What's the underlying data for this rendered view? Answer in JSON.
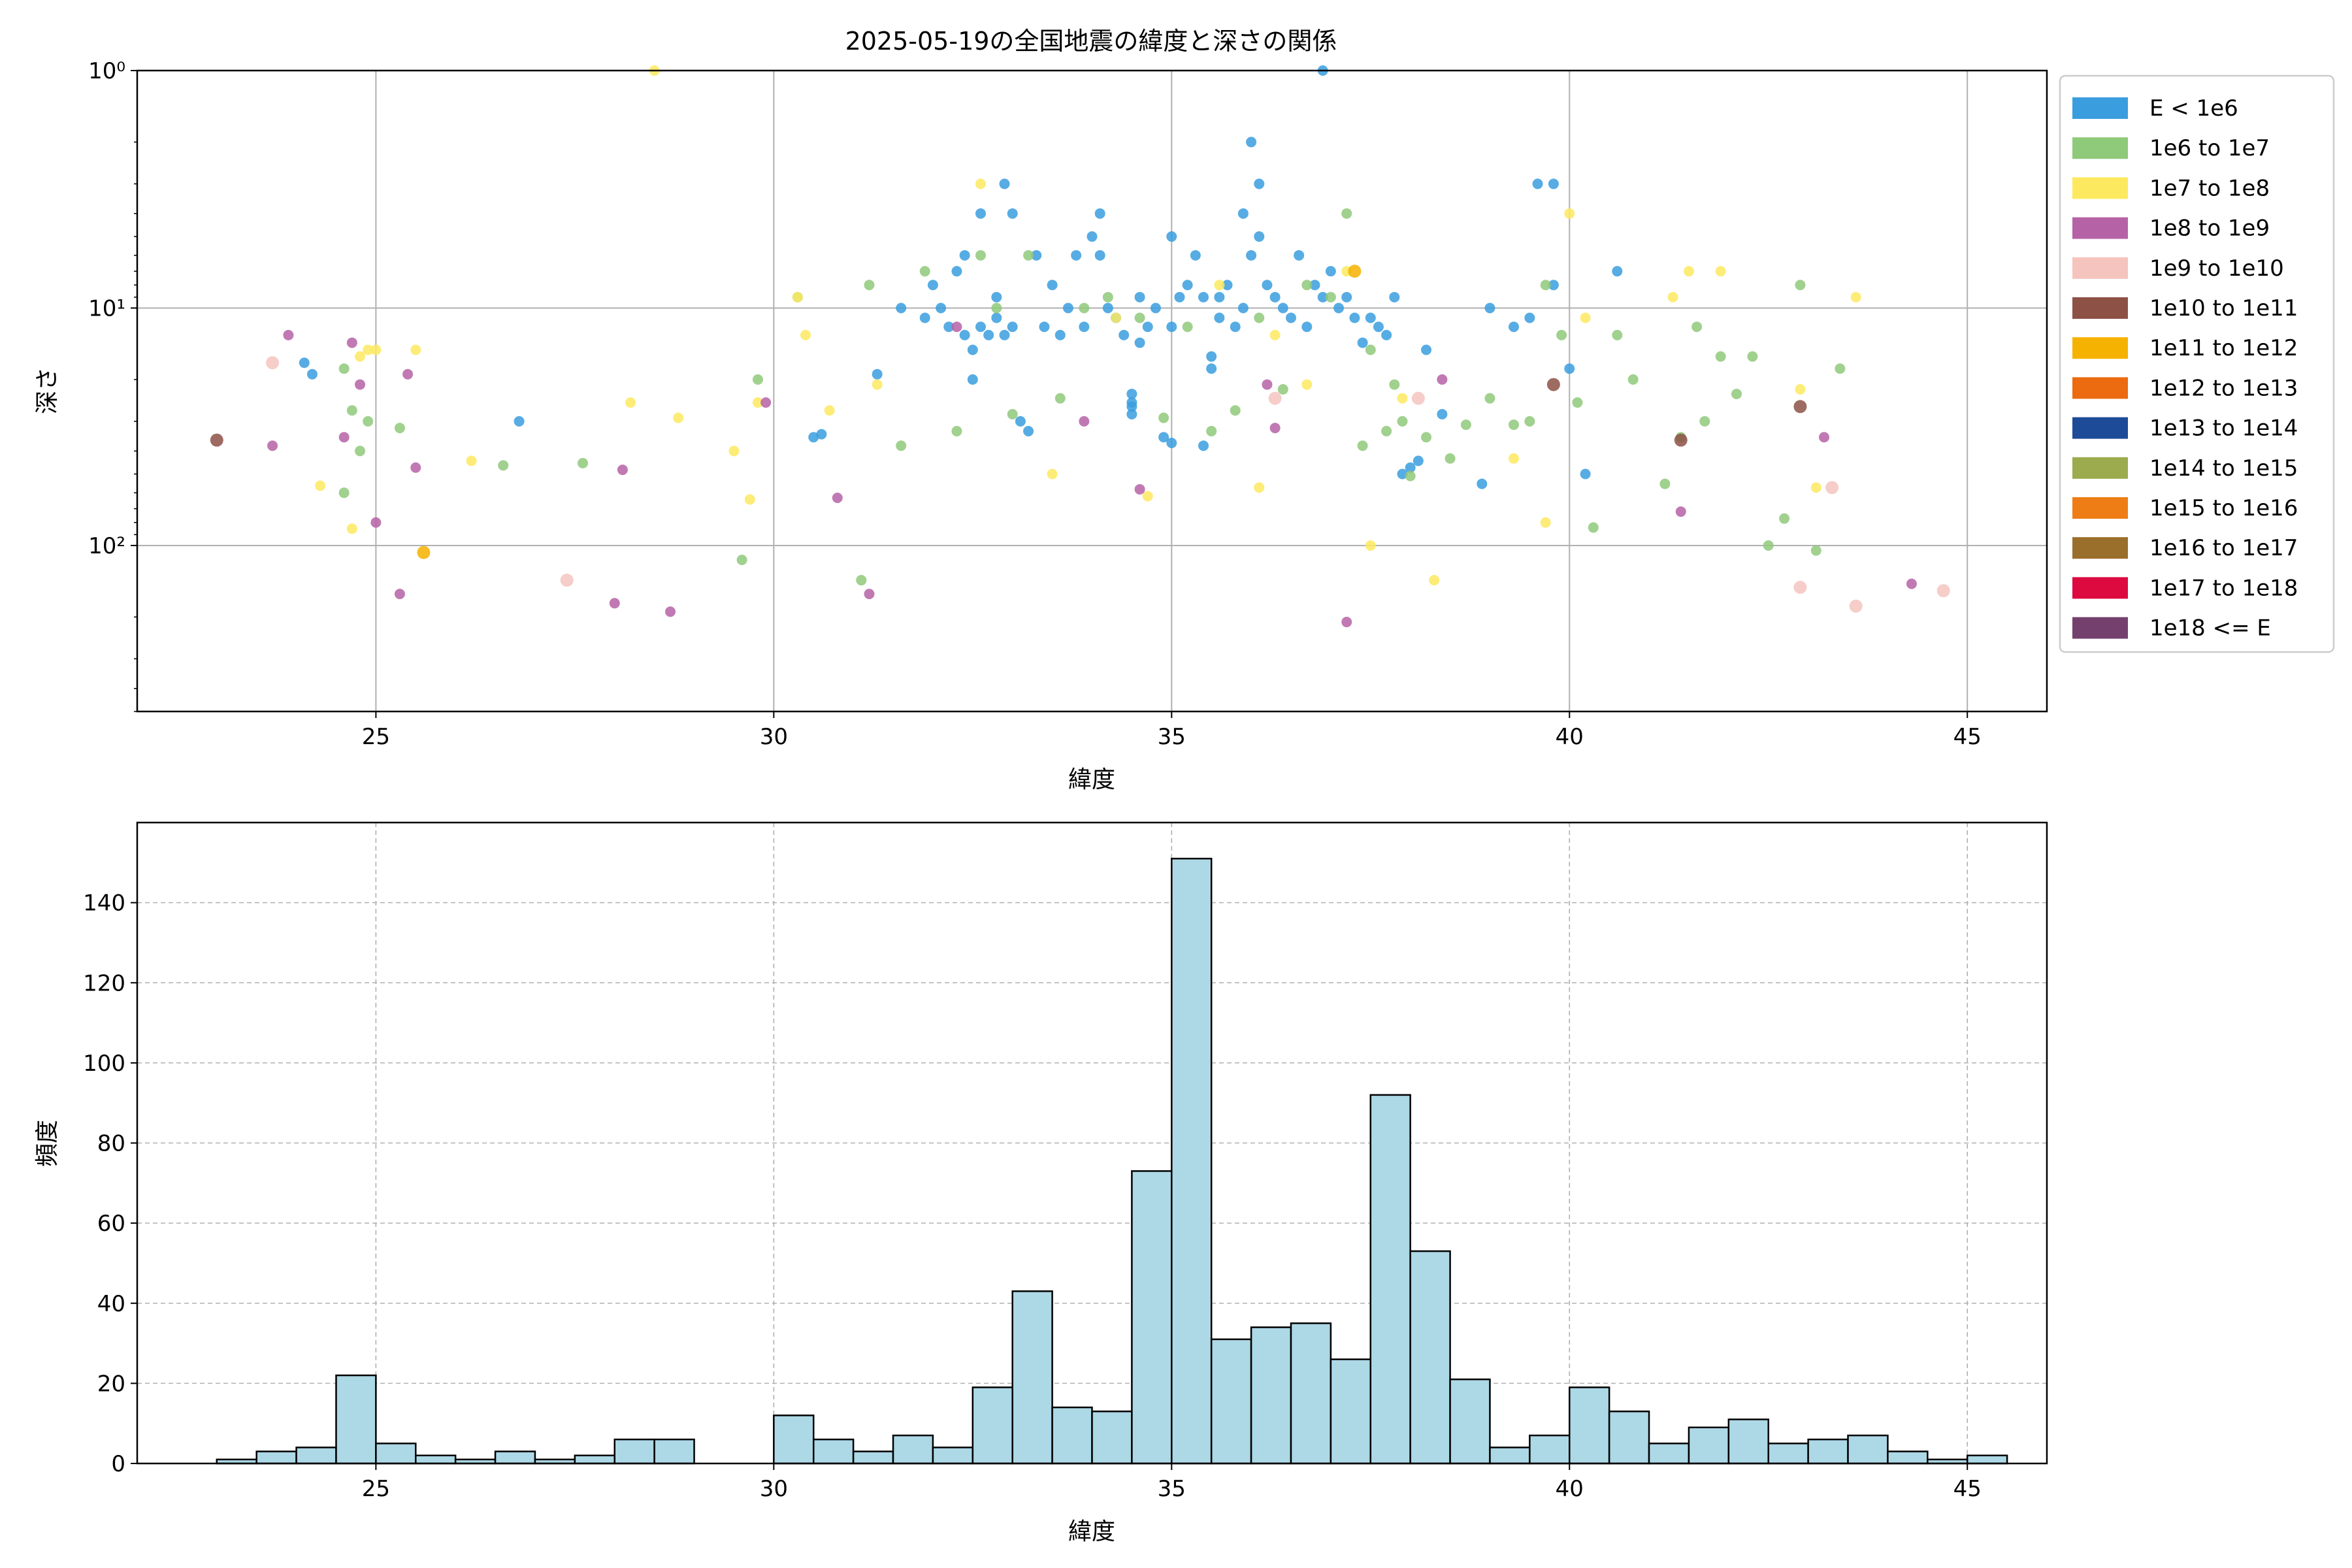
{
  "title": "2025-05-19の全国地震の緯度と深さの関係",
  "colors": {
    "grid": "#b0b0b0",
    "hist_fill": "#add8e6",
    "hist_edge": "#000000",
    "legend_border": "#cccccc"
  },
  "chart_data": [
    {
      "type": "scatter",
      "xlabel": "緯度",
      "ylabel": "深さ",
      "xlim": [
        22,
        46
      ],
      "y_scale": "log",
      "y_inverted": true,
      "ylim": [
        1,
        500
      ],
      "x_ticks": [
        25,
        30,
        35,
        40,
        45
      ],
      "y_ticks": [
        {
          "value": 1,
          "label": "10⁰"
        },
        {
          "value": 10,
          "label": "10¹"
        },
        {
          "value": 100,
          "label": "10²"
        }
      ],
      "grid": true,
      "legend_placement": "outside-right",
      "legend": [
        {
          "label": "E < 1e6",
          "color": "#3a9ede"
        },
        {
          "label": "1e6 to 1e7",
          "color": "#8fc97a"
        },
        {
          "label": "1e7 to 1e8",
          "color": "#fde95f"
        },
        {
          "label": "1e8 to 1e9",
          "color": "#b662a6"
        },
        {
          "label": "1e9 to 1e10",
          "color": "#f5c4be"
        },
        {
          "label": "1e10 to 1e11",
          "color": "#8d5146"
        },
        {
          "label": "1e11 to 1e12",
          "color": "#f6b200"
        },
        {
          "label": "1e12 to 1e13",
          "color": "#ec6a10"
        },
        {
          "label": "1e13 to 1e14",
          "color": "#1d4b97"
        },
        {
          "label": "1e14 to 1e15",
          "color": "#9bab4e"
        },
        {
          "label": "1e15 to 1e16",
          "color": "#ee7d16"
        },
        {
          "label": "1e16 to 1e17",
          "color": "#9a6e2b"
        },
        {
          "label": "1e17 to 1e18",
          "color": "#dc0a3f"
        },
        {
          "label": "1e18 <= E",
          "color": "#74406d"
        }
      ],
      "series": [
        {
          "name": "E < 1e6",
          "points": [
            [
              24.1,
              17
            ],
            [
              24.2,
              19
            ],
            [
              26.8,
              30
            ],
            [
              30.5,
              35
            ],
            [
              30.6,
              34
            ],
            [
              31.3,
              19
            ],
            [
              31.6,
              10
            ],
            [
              31.9,
              11
            ],
            [
              32.0,
              8
            ],
            [
              32.1,
              10
            ],
            [
              32.2,
              12
            ],
            [
              32.3,
              7
            ],
            [
              32.4,
              6
            ],
            [
              32.4,
              13
            ],
            [
              32.5,
              15
            ],
            [
              32.5,
              20
            ],
            [
              32.6,
              12
            ],
            [
              32.6,
              4
            ],
            [
              32.7,
              13
            ],
            [
              32.8,
              9
            ],
            [
              32.8,
              11
            ],
            [
              32.9,
              3
            ],
            [
              32.9,
              13
            ],
            [
              33.0,
              12
            ],
            [
              33.0,
              4
            ],
            [
              33.1,
              30
            ],
            [
              33.2,
              33
            ],
            [
              33.3,
              6
            ],
            [
              33.4,
              12
            ],
            [
              33.5,
              8
            ],
            [
              33.6,
              13
            ],
            [
              33.7,
              10
            ],
            [
              33.8,
              6
            ],
            [
              33.9,
              12
            ],
            [
              34.0,
              5
            ],
            [
              34.1,
              6
            ],
            [
              34.1,
              4
            ],
            [
              34.2,
              10
            ],
            [
              34.3,
              11
            ],
            [
              34.4,
              13
            ],
            [
              34.5,
              26
            ],
            [
              34.5,
              28
            ],
            [
              34.5,
              23
            ],
            [
              34.5,
              25
            ],
            [
              34.6,
              9
            ],
            [
              34.6,
              14
            ],
            [
              34.7,
              12
            ],
            [
              34.8,
              10
            ],
            [
              34.9,
              35
            ],
            [
              35.0,
              5
            ],
            [
              35.0,
              37
            ],
            [
              35.0,
              12
            ],
            [
              35.1,
              9
            ],
            [
              35.2,
              8
            ],
            [
              35.3,
              6
            ],
            [
              35.4,
              9
            ],
            [
              35.4,
              38
            ],
            [
              35.5,
              16
            ],
            [
              35.5,
              18
            ],
            [
              35.6,
              11
            ],
            [
              35.6,
              9
            ],
            [
              35.7,
              8
            ],
            [
              35.8,
              12
            ],
            [
              35.9,
              4
            ],
            [
              35.9,
              10
            ],
            [
              36.0,
              2
            ],
            [
              36.0,
              6
            ],
            [
              36.1,
              5
            ],
            [
              36.1,
              3
            ],
            [
              36.2,
              8
            ],
            [
              36.3,
              9
            ],
            [
              36.4,
              10
            ],
            [
              36.5,
              11
            ],
            [
              36.6,
              6
            ],
            [
              36.7,
              12
            ],
            [
              36.8,
              8
            ],
            [
              36.9,
              1
            ],
            [
              36.9,
              9
            ],
            [
              37.0,
              7
            ],
            [
              37.1,
              10
            ],
            [
              37.2,
              9
            ],
            [
              37.3,
              11
            ],
            [
              37.4,
              14
            ],
            [
              37.5,
              11
            ],
            [
              37.6,
              12
            ],
            [
              37.7,
              13
            ],
            [
              37.8,
              9
            ],
            [
              37.9,
              50
            ],
            [
              38.0,
              47
            ],
            [
              38.1,
              44
            ],
            [
              38.2,
              15
            ],
            [
              38.4,
              28
            ],
            [
              38.9,
              55
            ],
            [
              39.0,
              10
            ],
            [
              39.3,
              12
            ],
            [
              39.5,
              11
            ],
            [
              39.6,
              3
            ],
            [
              39.8,
              8
            ],
            [
              39.8,
              3
            ],
            [
              40.0,
              18
            ],
            [
              40.2,
              50
            ],
            [
              40.6,
              7
            ]
          ]
        },
        {
          "name": "1e6 to 1e7",
          "points": [
            [
              24.6,
              18
            ],
            [
              24.6,
              60
            ],
            [
              24.7,
              27
            ],
            [
              24.8,
              40
            ],
            [
              24.9,
              30
            ],
            [
              25.3,
              32
            ],
            [
              26.6,
              46
            ],
            [
              27.6,
              45
            ],
            [
              29.6,
              115
            ],
            [
              29.8,
              20
            ],
            [
              30.3,
              9
            ],
            [
              31.1,
              140
            ],
            [
              31.2,
              8
            ],
            [
              31.6,
              38
            ],
            [
              31.9,
              7
            ],
            [
              32.3,
              33
            ],
            [
              32.6,
              6
            ],
            [
              32.8,
              10
            ],
            [
              33.0,
              28
            ],
            [
              33.2,
              6
            ],
            [
              33.6,
              24
            ],
            [
              33.9,
              10
            ],
            [
              34.2,
              9
            ],
            [
              34.6,
              11
            ],
            [
              34.9,
              29
            ],
            [
              35.2,
              12
            ],
            [
              35.5,
              33
            ],
            [
              35.8,
              27
            ],
            [
              36.1,
              11
            ],
            [
              36.4,
              22
            ],
            [
              36.7,
              8
            ],
            [
              37.0,
              9
            ],
            [
              37.2,
              4
            ],
            [
              37.4,
              38
            ],
            [
              37.5,
              15
            ],
            [
              37.7,
              33
            ],
            [
              37.8,
              21
            ],
            [
              37.9,
              30
            ],
            [
              38.0,
              51
            ],
            [
              38.2,
              35
            ],
            [
              38.5,
              43
            ],
            [
              38.7,
              31
            ],
            [
              39.0,
              24
            ],
            [
              39.3,
              31
            ],
            [
              39.5,
              30
            ],
            [
              39.7,
              8
            ],
            [
              39.9,
              13
            ],
            [
              40.1,
              25
            ],
            [
              40.3,
              84
            ],
            [
              40.6,
              13
            ],
            [
              40.8,
              20
            ],
            [
              41.2,
              55
            ],
            [
              41.4,
              35
            ],
            [
              41.6,
              12
            ],
            [
              41.7,
              30
            ],
            [
              41.9,
              16
            ],
            [
              42.1,
              23
            ],
            [
              42.3,
              16
            ],
            [
              42.5,
              100
            ],
            [
              42.7,
              77
            ],
            [
              42.9,
              8
            ],
            [
              43.1,
              105
            ],
            [
              43.4,
              18
            ]
          ]
        },
        {
          "name": "1e7 to 1e8",
          "points": [
            [
              24.3,
              56
            ],
            [
              24.7,
              85
            ],
            [
              24.8,
              16
            ],
            [
              24.9,
              15
            ],
            [
              25.0,
              15
            ],
            [
              25.5,
              15
            ],
            [
              26.2,
              44
            ],
            [
              28.2,
              25
            ],
            [
              28.5,
              1
            ],
            [
              28.8,
              29
            ],
            [
              29.5,
              40
            ],
            [
              29.7,
              64
            ],
            [
              29.8,
              25
            ],
            [
              30.3,
              9
            ],
            [
              30.4,
              13
            ],
            [
              30.7,
              27
            ],
            [
              31.3,
              21
            ],
            [
              32.6,
              3
            ],
            [
              33.5,
              50
            ],
            [
              34.3,
              11
            ],
            [
              34.7,
              62
            ],
            [
              35.6,
              8
            ],
            [
              36.1,
              57
            ],
            [
              36.3,
              13
            ],
            [
              36.7,
              21
            ],
            [
              37.2,
              7
            ],
            [
              37.5,
              100
            ],
            [
              37.9,
              24
            ],
            [
              38.3,
              140
            ],
            [
              39.3,
              43
            ],
            [
              39.7,
              80
            ],
            [
              40.0,
              4
            ],
            [
              40.2,
              11
            ],
            [
              41.3,
              9
            ],
            [
              41.5,
              7
            ],
            [
              41.9,
              7
            ],
            [
              42.9,
              22
            ],
            [
              43.1,
              57
            ],
            [
              43.6,
              9
            ]
          ]
        },
        {
          "name": "1e8 to 1e9",
          "points": [
            [
              23.7,
              38
            ],
            [
              23.9,
              13
            ],
            [
              24.6,
              35
            ],
            [
              24.7,
              14
            ],
            [
              24.8,
              21
            ],
            [
              25.0,
              80
            ],
            [
              25.3,
              160
            ],
            [
              25.4,
              19
            ],
            [
              25.5,
              47
            ],
            [
              28.0,
              175
            ],
            [
              28.1,
              48
            ],
            [
              28.7,
              190
            ],
            [
              29.9,
              25
            ],
            [
              30.8,
              63
            ],
            [
              31.2,
              160
            ],
            [
              32.3,
              12
            ],
            [
              33.9,
              30
            ],
            [
              34.6,
              58
            ],
            [
              36.2,
              21
            ],
            [
              36.3,
              32
            ],
            [
              37.2,
              210
            ],
            [
              38.4,
              20
            ],
            [
              41.4,
              72
            ],
            [
              43.2,
              35
            ],
            [
              44.3,
              145
            ]
          ]
        },
        {
          "name": "1e9 to 1e10",
          "points": [
            [
              23.7,
              17
            ],
            [
              27.4,
              140
            ],
            [
              36.3,
              24
            ],
            [
              38.1,
              24
            ],
            [
              42.9,
              150
            ],
            [
              43.3,
              57
            ],
            [
              43.6,
              180
            ],
            [
              44.7,
              155
            ]
          ]
        },
        {
          "name": "1e10 to 1e11",
          "points": [
            [
              23.0,
              36
            ],
            [
              39.8,
              21
            ],
            [
              41.4,
              36
            ],
            [
              42.9,
              26
            ]
          ]
        },
        {
          "name": "1e11 to 1e12",
          "points": [
            [
              25.6,
              107
            ],
            [
              37.3,
              7
            ]
          ]
        }
      ]
    },
    {
      "type": "bar",
      "subtype": "histogram",
      "xlabel": "緯度",
      "ylabel": "頻度",
      "xlim": [
        22,
        46
      ],
      "ylim": [
        0,
        160
      ],
      "x_ticks": [
        25,
        30,
        35,
        40,
        45
      ],
      "y_ticks": [
        0,
        20,
        40,
        60,
        80,
        100,
        120,
        140
      ],
      "grid": true,
      "bin_start": 23.0,
      "bin_width": 0.5,
      "counts": [
        1,
        3,
        4,
        22,
        5,
        2,
        1,
        3,
        1,
        2,
        6,
        6,
        0,
        0,
        12,
        6,
        3,
        7,
        4,
        19,
        43,
        14,
        13,
        73,
        151,
        31,
        34,
        35,
        26,
        92,
        53,
        21,
        4,
        7,
        19,
        13,
        5,
        9,
        11,
        5,
        6,
        7,
        3,
        1,
        2
      ]
    }
  ]
}
